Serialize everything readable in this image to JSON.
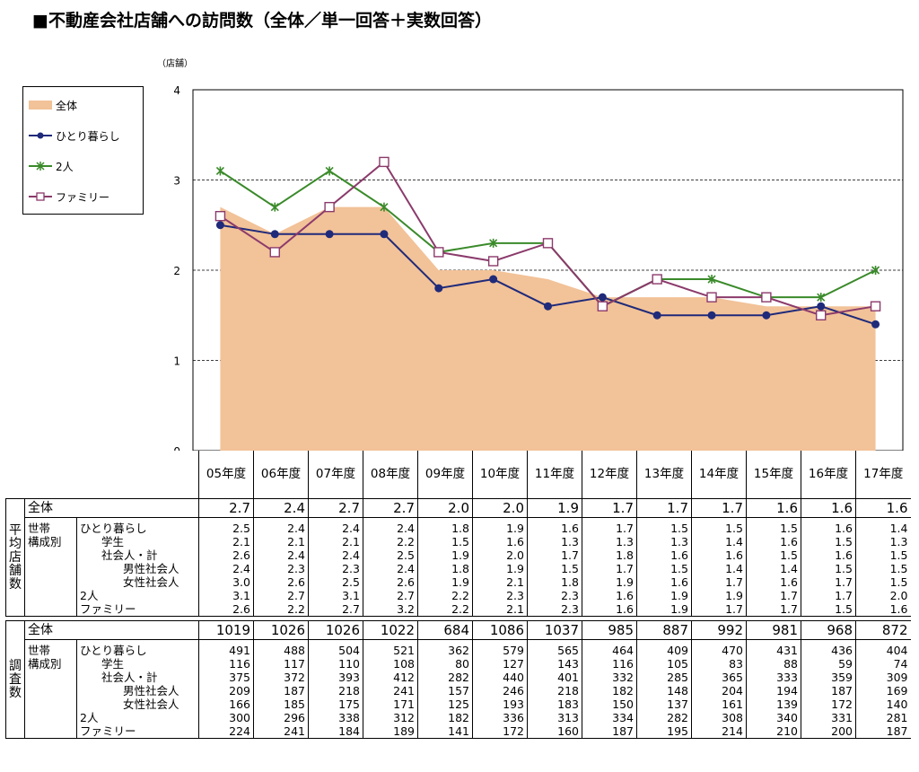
{
  "title": "■不動産会社店舗への訪問数（全体／単一回答＋実数回答）",
  "chart_data": {
    "type": "line",
    "y_unit": "（店舗）",
    "ylim": [
      0,
      4
    ],
    "yticks": [
      0,
      1,
      2,
      3,
      4
    ],
    "grid": "horizontal dashed at 1, 2, 3",
    "legend_position": "left",
    "categories": [
      "05年度",
      "06年度",
      "07年度",
      "08年度",
      "09年度",
      "10年度",
      "11年度",
      "12年度",
      "13年度",
      "14年度",
      "15年度",
      "16年度",
      "17年度"
    ],
    "series": [
      {
        "name": "全体",
        "style": "area",
        "color": "#f2c298",
        "values": [
          2.7,
          2.4,
          2.7,
          2.7,
          2.0,
          2.0,
          1.9,
          1.7,
          1.7,
          1.7,
          1.6,
          1.6,
          1.6
        ]
      },
      {
        "name": "ひとり暮らし",
        "style": "line-dot",
        "color": "#1f2a7a",
        "values": [
          2.5,
          2.4,
          2.4,
          2.4,
          1.8,
          1.9,
          1.6,
          1.7,
          1.5,
          1.5,
          1.5,
          1.6,
          1.4
        ]
      },
      {
        "name": "2人",
        "style": "line-star",
        "color": "#3a8a2a",
        "values": [
          3.1,
          2.7,
          3.1,
          2.7,
          2.2,
          2.3,
          2.3,
          1.6,
          1.9,
          1.9,
          1.7,
          1.7,
          2.0
        ]
      },
      {
        "name": "ファミリー",
        "style": "line-square",
        "color": "#8b3a6b",
        "values": [
          2.6,
          2.2,
          2.7,
          3.2,
          2.2,
          2.1,
          2.3,
          1.6,
          1.9,
          1.7,
          1.7,
          1.5,
          1.6
        ]
      }
    ]
  },
  "table": {
    "avg_section_label": [
      "平",
      "均",
      "店",
      "舗",
      "数"
    ],
    "count_section_label": [
      "調",
      "査",
      "数"
    ],
    "total_label": "全体",
    "group_label_1": "世帯",
    "group_label_2": "構成別",
    "row_labels": [
      "ひとり暮らし",
      "学生",
      "社会人・計",
      "男性社会人",
      "女性社会人",
      "2人",
      "ファミリー"
    ],
    "avg_total": [
      "2.7",
      "2.4",
      "2.7",
      "2.7",
      "2.0",
      "2.0",
      "1.9",
      "1.7",
      "1.7",
      "1.7",
      "1.6",
      "1.6",
      "1.6"
    ],
    "avg_rows": [
      [
        "2.5",
        "2.4",
        "2.4",
        "2.4",
        "1.8",
        "1.9",
        "1.6",
        "1.7",
        "1.5",
        "1.5",
        "1.5",
        "1.6",
        "1.4"
      ],
      [
        "2.1",
        "2.1",
        "2.1",
        "2.2",
        "1.5",
        "1.6",
        "1.3",
        "1.3",
        "1.3",
        "1.4",
        "1.6",
        "1.5",
        "1.3"
      ],
      [
        "2.6",
        "2.4",
        "2.4",
        "2.5",
        "1.9",
        "2.0",
        "1.7",
        "1.8",
        "1.6",
        "1.6",
        "1.5",
        "1.6",
        "1.5"
      ],
      [
        "2.4",
        "2.3",
        "2.3",
        "2.4",
        "1.8",
        "1.9",
        "1.5",
        "1.7",
        "1.5",
        "1.4",
        "1.4",
        "1.5",
        "1.5"
      ],
      [
        "3.0",
        "2.6",
        "2.5",
        "2.6",
        "1.9",
        "2.1",
        "1.8",
        "1.9",
        "1.6",
        "1.7",
        "1.6",
        "1.7",
        "1.5"
      ],
      [
        "3.1",
        "2.7",
        "3.1",
        "2.7",
        "2.2",
        "2.3",
        "2.3",
        "1.6",
        "1.9",
        "1.9",
        "1.7",
        "1.7",
        "2.0"
      ],
      [
        "2.6",
        "2.2",
        "2.7",
        "3.2",
        "2.2",
        "2.1",
        "2.3",
        "1.6",
        "1.9",
        "1.7",
        "1.7",
        "1.5",
        "1.6"
      ]
    ],
    "count_total": [
      "1019",
      "1026",
      "1026",
      "1022",
      "684",
      "1086",
      "1037",
      "985",
      "887",
      "992",
      "981",
      "968",
      "872"
    ],
    "count_rows": [
      [
        "491",
        "488",
        "504",
        "521",
        "362",
        "579",
        "565",
        "464",
        "409",
        "470",
        "431",
        "436",
        "404"
      ],
      [
        "116",
        "117",
        "110",
        "108",
        "80",
        "127",
        "143",
        "116",
        "105",
        "83",
        "88",
        "59",
        "74"
      ],
      [
        "375",
        "372",
        "393",
        "412",
        "282",
        "440",
        "401",
        "332",
        "285",
        "365",
        "333",
        "359",
        "309"
      ],
      [
        "209",
        "187",
        "218",
        "241",
        "157",
        "246",
        "218",
        "182",
        "148",
        "204",
        "194",
        "187",
        "169"
      ],
      [
        "166",
        "185",
        "175",
        "171",
        "125",
        "193",
        "183",
        "150",
        "137",
        "161",
        "139",
        "172",
        "140"
      ],
      [
        "300",
        "296",
        "338",
        "312",
        "182",
        "336",
        "313",
        "334",
        "282",
        "308",
        "340",
        "331",
        "281"
      ],
      [
        "224",
        "241",
        "184",
        "189",
        "141",
        "172",
        "160",
        "187",
        "195",
        "214",
        "210",
        "200",
        "187"
      ]
    ]
  }
}
